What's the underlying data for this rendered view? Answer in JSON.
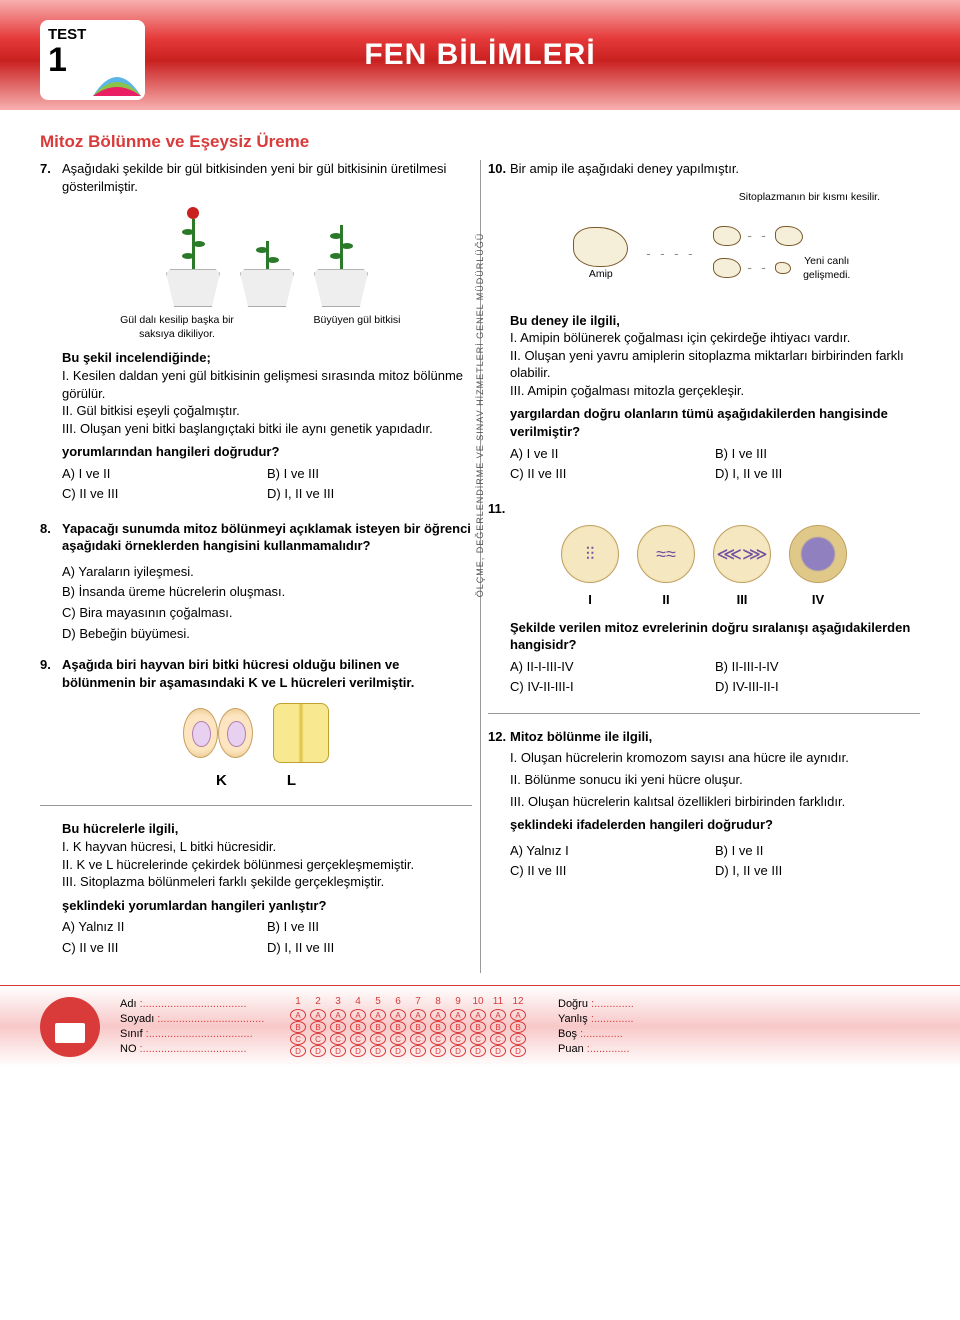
{
  "header": {
    "badge_label": "TEST",
    "badge_num": "1",
    "title": "FEN BİLİMLERİ"
  },
  "subtitle": "Mitoz Bölünme ve Eşeysiz Üreme",
  "vtext": "ÖLÇME, DEĞERLENDİRME VE SINAV HİZMETLERİ GENEL MÜDÜRLÜĞÜ",
  "q7": {
    "num": "7.",
    "intro": "Aşağıdaki şekilde bir gül bitkisinden yeni bir gül bitkisinin üretilmesi gösterilmiştir.",
    "cap_left": "Gül dalı kesilip başka bir saksıya dikiliyor.",
    "cap_right": "Büyüyen gül bitkisi",
    "lead": "Bu şekil incelendiğinde;",
    "i": "I. Kesilen daldan yeni gül bitkisinin gelişmesi sırasında mitoz bölünme görülür.",
    "ii": "II. Gül bitkisi eşeyli çoğalmıştır.",
    "iii": "III. Oluşan yeni bitki başlangıçtaki bitki ile aynı genetik yapıdadır.",
    "ask": "yorumlarından hangileri doğrudur?",
    "a": "A) I ve II",
    "b": "B) I ve III",
    "c": "C) II ve III",
    "d": "D) I, II ve III"
  },
  "q8": {
    "num": "8.",
    "intro": "Yapacağı sunumda mitoz bölünmeyi açıklamak isteyen bir öğrenci aşağıdaki örneklerden hangisini kullanmamalıdır?",
    "a": "A) Yaraların iyileşmesi.",
    "b": "B) İnsanda üreme hücrelerin oluşması.",
    "c": "C) Bira mayasının çoğalması.",
    "d": "D) Bebeğin büyümesi."
  },
  "q9": {
    "num": "9.",
    "intro": "Aşağıda biri hayvan biri bitki hücresi olduğu bilinen ve bölünmenin bir aşamasındaki K ve L hücreleri verilmiştir.",
    "k": "K",
    "l": "L",
    "lead": "Bu hücrelerle ilgili,",
    "i": "I. K hayvan hücresi, L bitki hücresidir.",
    "ii": "II. K ve L hücrelerinde çekirdek bölünmesi gerçekleşmemiştir.",
    "iii": "III. Sitoplazma bölünmeleri farklı şekilde gerçekleşmiştir.",
    "ask": "şeklindeki yorumlardan hangileri yanlıştır?",
    "a": "A) Yalnız II",
    "b": "B) I ve III",
    "c": "C) II ve III",
    "d": "D) I, II ve III"
  },
  "q10": {
    "num": "10.",
    "intro": "Bir amip ile aşağıdaki deney yapılmıştır.",
    "cap_top": "Sitoplazmanın bir kısmı kesilir.",
    "cap_amip": "Amip",
    "cap_right": "Yeni canlı gelişmedi.",
    "lead": "Bu deney ile ilgili,",
    "i": "I. Amipin bölünerek çoğalması için çekirdeğe ihtiyacı vardır.",
    "ii": "II. Oluşan yeni yavru amiplerin sitoplazma miktarları birbirinden farklı olabilir.",
    "iii": "III. Amipin çoğalması mitozla gerçekleşir.",
    "ask": "yargılardan doğru olanların tümü aşağıdakilerden hangisinde verilmiştir?",
    "a": "A) I ve II",
    "b": "B) I ve III",
    "c": "C) II ve III",
    "d": "D) I, II ve III"
  },
  "q11": {
    "num": "11.",
    "l1": "I",
    "l2": "II",
    "l3": "III",
    "l4": "IV",
    "ask": "Şekilde verilen mitoz evrelerinin doğru sıralanışı aşağıdakilerden hangisidr?",
    "a": "A) II-I-III-IV",
    "b": "B) II-III-I-IV",
    "c": "C) IV-II-III-I",
    "d": "D) IV-III-II-I"
  },
  "q12": {
    "num": "12.",
    "intro": "Mitoz bölünme ile ilgili,",
    "i": "I. Oluşan hücrelerin kromozom sayısı ana hücre ile aynıdır.",
    "ii": "II. Bölünme sonucu iki yeni hücre oluşur.",
    "iii": "III. Oluşan hücrelerin kalıtsal özellikleri birbirinden farklıdır.",
    "ask": "şeklindeki ifadelerden hangileri doğrudur?",
    "a": "A) Yalnız I",
    "b": "B) I ve II",
    "c": "C) II ve III",
    "d": "D) I, II ve III"
  },
  "footer": {
    "adi": "Adı",
    "soyadi": "Soyadı",
    "sinif": "Sınıf",
    "no": "NO",
    "dogru": "Doğru",
    "yanlis": "Yanlış",
    "bos": "Boş",
    "puan": "Puan",
    "nums": [
      "1",
      "2",
      "3",
      "4",
      "5",
      "6",
      "7",
      "8",
      "9",
      "10",
      "11",
      "12"
    ],
    "rows": [
      "A",
      "B",
      "C",
      "D"
    ]
  },
  "colors": {
    "accent": "#d93a3a",
    "header_grad": [
      "#f8b0b0",
      "#e63a3a",
      "#c92020",
      "#f8b0b0"
    ]
  }
}
